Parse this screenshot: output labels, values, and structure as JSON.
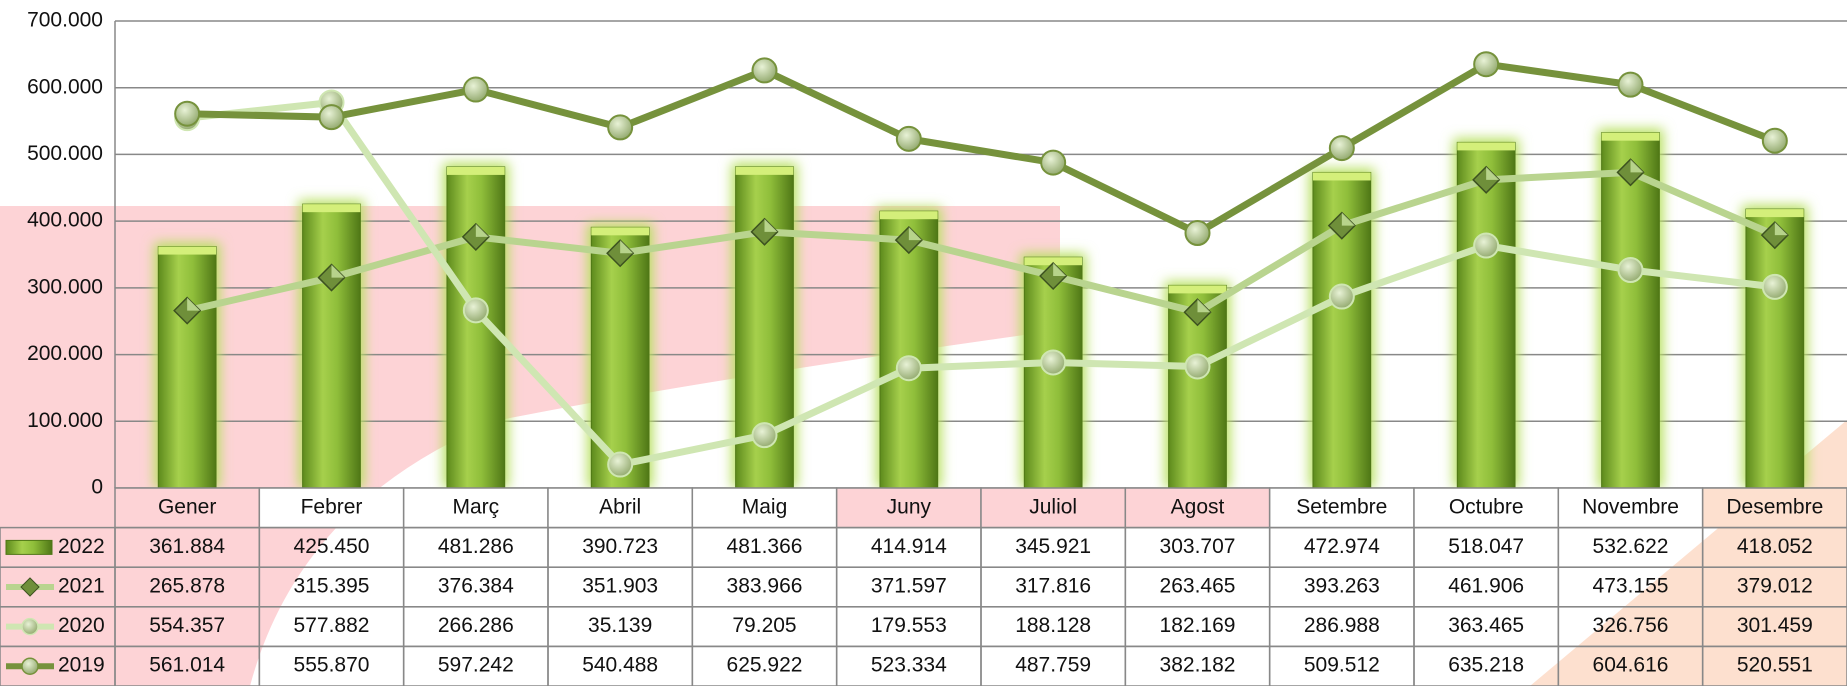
{
  "chart_data": {
    "type": "bar",
    "categories": [
      "Gener",
      "Febrer",
      "Març",
      "Abril",
      "Maig",
      "Juny",
      "Juliol",
      "Agost",
      "Setembre",
      "Octubre",
      "Novembre",
      "Desembre"
    ],
    "series": [
      {
        "name": "2022",
        "type": "bar",
        "color": "#8fbe3a",
        "values": [
          361884,
          425450,
          481286,
          390723,
          481366,
          414914,
          345921,
          303707,
          472974,
          518047,
          532622,
          418052
        ],
        "value_labels": [
          "361.884",
          "425.450",
          "481.286",
          "390.723",
          "481.366",
          "414.914",
          "345.921",
          "303.707",
          "472.974",
          "518.047",
          "532.622",
          "418.052"
        ]
      },
      {
        "name": "2021",
        "type": "line",
        "marker": "diamond",
        "color": "#b9d48f",
        "values": [
          265878,
          315395,
          376384,
          351903,
          383966,
          371597,
          317816,
          263465,
          393263,
          461906,
          473155,
          379012
        ],
        "value_labels": [
          "265.878",
          "315.395",
          "376.384",
          "351.903",
          "383.966",
          "371.597",
          "317.816",
          "263.465",
          "393.263",
          "461.906",
          "473.155",
          "379.012"
        ]
      },
      {
        "name": "2020",
        "type": "line",
        "marker": "circle",
        "color": "#cfe6b2",
        "values": [
          554357,
          577882,
          266286,
          35139,
          79205,
          179553,
          188128,
          182169,
          286988,
          363465,
          326756,
          301459
        ],
        "value_labels": [
          "554.357",
          "577.882",
          "266.286",
          "35.139",
          "79.205",
          "179.553",
          "188.128",
          "182.169",
          "286.988",
          "363.465",
          "326.756",
          "301.459"
        ]
      },
      {
        "name": "2019",
        "type": "line",
        "marker": "circle",
        "color": "#76923c",
        "values": [
          561014,
          555870,
          597242,
          540488,
          625922,
          523334,
          487759,
          382182,
          509512,
          635218,
          604616,
          520551
        ],
        "value_labels": [
          "561.014",
          "555.870",
          "597.242",
          "540.488",
          "625.922",
          "523.334",
          "487.759",
          "382.182",
          "509.512",
          "635.218",
          "604.616",
          "520.551"
        ]
      }
    ],
    "ylim": [
      0,
      700000
    ],
    "yticks": [
      0,
      {
        "value": 100000,
        "label": "100.000"
      },
      {
        "value": 200000,
        "label": "200.000"
      },
      {
        "value": 300000,
        "label": "300.000"
      },
      {
        "value": 400000,
        "label": "400.000"
      },
      {
        "value": 500000,
        "label": "500.000"
      },
      {
        "value": 600000,
        "label": "600.000"
      },
      {
        "value": 700000,
        "label": "700.000"
      }
    ],
    "grid": true
  }
}
